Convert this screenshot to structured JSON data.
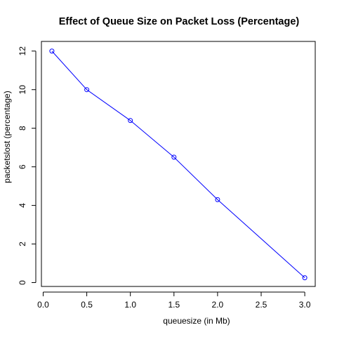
{
  "chart_data": {
    "type": "line",
    "title": "Effect of Queue Size on Packet Loss (Percentage)",
    "xlabel": "queuesize    (in Mb)",
    "ylabel": "packetslost  (percentage)",
    "x_ticks": [
      "0.0",
      "0.5",
      "1.0",
      "1.5",
      "2.0",
      "2.5",
      "3.0"
    ],
    "y_ticks": [
      "0",
      "2",
      "4",
      "6",
      "8",
      "10",
      "12"
    ],
    "xlim": [
      -0.02,
      3.12
    ],
    "ylim": [
      -0.2,
      12.5
    ],
    "grid": false,
    "series": [
      {
        "color": "#0000ff",
        "marker": "circle",
        "x": [
          0.1,
          0.5,
          1.0,
          1.5,
          2.0,
          3.0
        ],
        "y": [
          12.0,
          10.0,
          8.4,
          6.5,
          4.3,
          0.25
        ]
      }
    ]
  }
}
